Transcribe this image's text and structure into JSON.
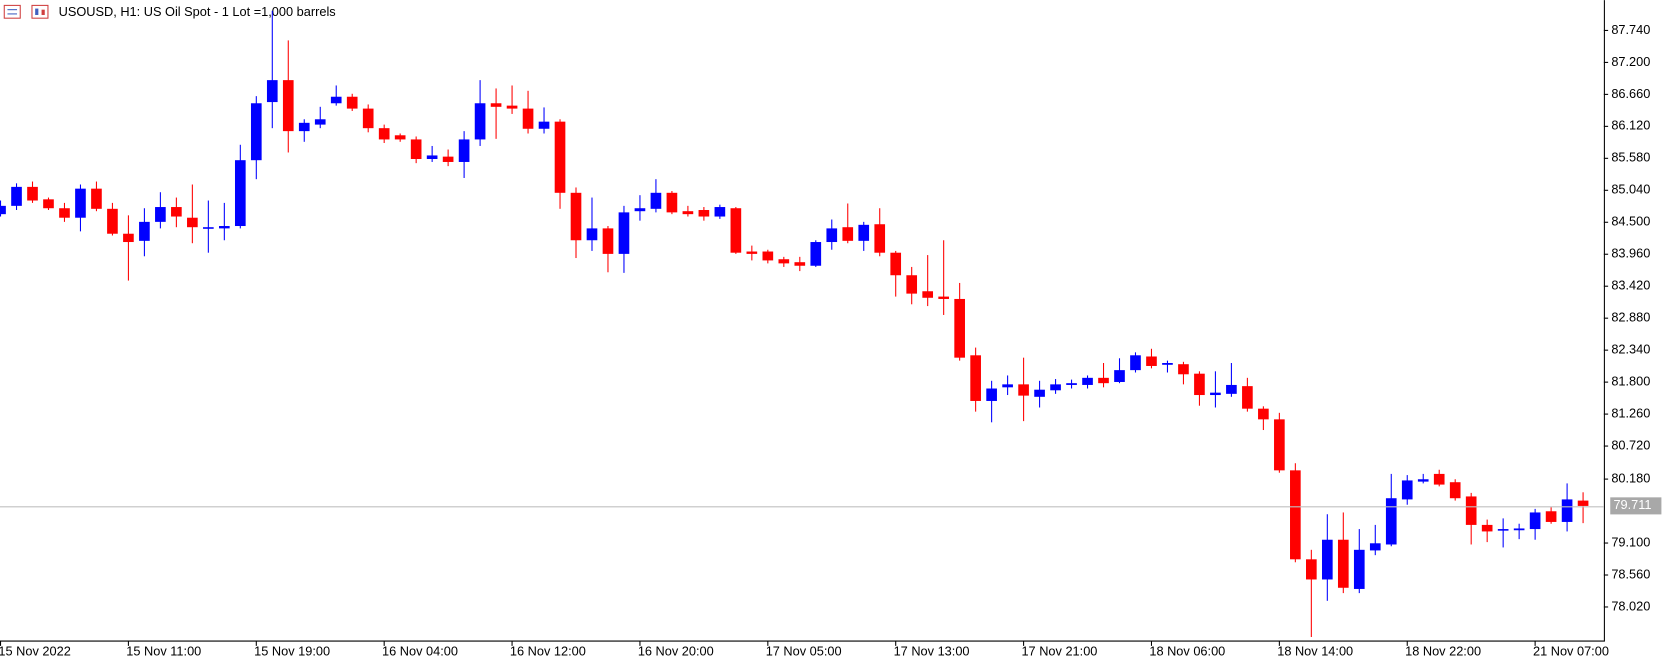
{
  "chart_data": {
    "type": "candlestick",
    "title": "USOUSD, H1:  US Oil Spot - 1 Lot =1,000 barrels",
    "categories": [
      "15 Nov 2022",
      null,
      null,
      null,
      null,
      null,
      null,
      null,
      "15 Nov 11:00",
      null,
      null,
      null,
      null,
      null,
      null,
      null,
      "15 Nov 19:00",
      null,
      null,
      null,
      null,
      null,
      null,
      null,
      "16 Nov 04:00",
      null,
      null,
      null,
      null,
      null,
      null,
      null,
      "16 Nov 12:00",
      null,
      null,
      null,
      null,
      null,
      null,
      null,
      "16 Nov 20:00",
      null,
      null,
      null,
      null,
      null,
      null,
      null,
      "17 Nov 05:00",
      null,
      null,
      null,
      null,
      null,
      null,
      null,
      "17 Nov 13:00",
      null,
      null,
      null,
      null,
      null,
      null,
      null,
      "17 Nov 21:00",
      null,
      null,
      null,
      null,
      null,
      null,
      null,
      "18 Nov 06:00",
      null,
      null,
      null,
      null,
      null,
      null,
      null,
      "18 Nov 14:00",
      null,
      null,
      null,
      null,
      null,
      null,
      null,
      "18 Nov 22:00",
      null,
      null,
      null,
      null,
      null,
      null,
      null,
      "21 Nov 07:00",
      null,
      null,
      null
    ],
    "open": [
      84.63,
      84.77,
      85.09,
      84.88,
      84.73,
      84.57,
      85.06,
      84.72,
      84.3,
      84.18,
      84.5,
      84.75,
      84.57,
      84.39,
      84.39,
      84.43,
      85.54,
      86.52,
      86.89,
      86.03,
      86.14,
      86.5,
      86.61,
      86.41,
      86.08,
      85.96,
      85.89,
      85.56,
      85.6,
      85.51,
      85.89,
      86.5,
      86.46,
      86.41,
      86.07,
      86.19,
      84.99,
      84.19,
      84.39,
      83.96,
      84.68,
      84.72,
      84.99,
      84.68,
      84.7,
      84.59,
      84.73,
      84.0,
      84.0,
      83.87,
      83.82,
      83.76,
      84.16,
      84.41,
      84.18,
      84.46,
      83.98,
      83.6,
      83.33,
      83.24,
      83.2,
      82.25,
      81.48,
      81.71,
      81.76,
      81.55,
      81.66,
      81.75,
      81.75,
      81.87,
      81.8,
      82.0,
      82.23,
      82.09,
      82.1,
      81.94,
      81.58,
      81.6,
      81.73,
      81.35,
      81.17,
      80.31,
      78.81,
      78.47,
      79.14,
      78.31,
      78.96,
      79.06,
      79.82,
      80.12,
      80.25,
      80.11,
      79.87,
      79.39,
      79.3,
      79.3,
      79.32,
      79.62,
      79.44,
      79.8
    ],
    "high": [
      84.86,
      85.15,
      85.18,
      84.91,
      84.82,
      85.13,
      85.18,
      84.82,
      84.61,
      84.73,
      85.0,
      84.91,
      85.13,
      84.86,
      84.82,
      85.8,
      86.62,
      88.06,
      87.56,
      86.23,
      86.44,
      86.8,
      86.66,
      86.48,
      86.14,
      85.99,
      85.94,
      85.78,
      85.72,
      86.03,
      86.89,
      86.75,
      86.8,
      86.71,
      86.43,
      86.23,
      85.08,
      84.91,
      84.43,
      84.77,
      84.95,
      85.22,
      85.02,
      84.77,
      84.75,
      84.79,
      84.75,
      84.1,
      84.03,
      83.91,
      83.91,
      84.19,
      84.54,
      84.81,
      84.5,
      84.73,
      84.01,
      83.74,
      83.94,
      84.19,
      83.47,
      82.38,
      81.82,
      81.91,
      82.21,
      81.82,
      81.85,
      81.84,
      81.91,
      82.12,
      82.2,
      82.3,
      82.36,
      82.16,
      82.14,
      81.98,
      81.98,
      82.12,
      81.87,
      81.39,
      81.28,
      80.43,
      78.97,
      79.57,
      79.6,
      79.32,
      79.39,
      80.25,
      80.23,
      80.25,
      80.32,
      80.16,
      79.93,
      79.48,
      79.5,
      79.41,
      79.66,
      79.69,
      80.09,
      79.94
    ],
    "low": [
      84.59,
      84.7,
      84.82,
      84.7,
      84.5,
      84.34,
      84.68,
      84.27,
      83.51,
      83.92,
      84.39,
      84.41,
      84.14,
      83.98,
      84.19,
      84.39,
      85.22,
      86.08,
      85.67,
      85.85,
      86.08,
      86.46,
      86.37,
      86.01,
      85.83,
      85.85,
      85.49,
      85.51,
      85.44,
      85.24,
      85.78,
      85.9,
      86.32,
      85.99,
      85.99,
      84.72,
      83.89,
      84.01,
      83.65,
      83.64,
      84.52,
      84.66,
      84.63,
      84.59,
      84.52,
      84.55,
      83.96,
      83.85,
      83.8,
      83.74,
      83.67,
      83.74,
      84.03,
      84.14,
      84.01,
      83.92,
      83.24,
      83.11,
      83.08,
      82.93,
      82.16,
      81.3,
      81.12,
      81.58,
      81.14,
      81.37,
      81.6,
      81.69,
      81.69,
      81.71,
      81.78,
      81.96,
      82.03,
      81.96,
      81.76,
      81.4,
      81.37,
      81.55,
      81.3,
      80.99,
      80.27,
      78.76,
      77.5,
      78.11,
      78.24,
      78.24,
      78.88,
      79.03,
      79.73,
      80.09,
      80.04,
      79.8,
      79.06,
      79.1,
      79.01,
      79.15,
      79.14,
      79.41,
      79.28,
      79.42
    ],
    "close": [
      84.77,
      85.09,
      84.86,
      84.73,
      84.57,
      85.06,
      84.72,
      84.3,
      84.16,
      84.5,
      84.75,
      84.59,
      84.41,
      84.41,
      84.43,
      85.54,
      86.5,
      86.89,
      86.03,
      86.17,
      86.23,
      86.61,
      86.41,
      86.08,
      85.89,
      85.89,
      85.56,
      85.62,
      85.51,
      85.89,
      86.5,
      86.44,
      86.41,
      86.07,
      86.19,
      84.99,
      84.19,
      84.39,
      83.96,
      84.66,
      84.73,
      84.99,
      84.66,
      84.63,
      84.59,
      84.75,
      83.98,
      83.96,
      83.85,
      83.8,
      83.76,
      84.16,
      84.39,
      84.18,
      84.45,
      83.98,
      83.6,
      83.29,
      83.22,
      83.2,
      82.21,
      81.48,
      81.69,
      81.76,
      81.57,
      81.67,
      81.76,
      81.78,
      81.87,
      81.78,
      82.0,
      82.25,
      82.07,
      82.12,
      81.93,
      81.58,
      81.62,
      81.75,
      81.35,
      81.17,
      80.31,
      78.81,
      78.47,
      79.14,
      78.33,
      78.97,
      79.08,
      79.84,
      80.14,
      80.16,
      80.07,
      79.84,
      79.39,
      79.28,
      79.32,
      79.33,
      79.6,
      79.44,
      79.82,
      79.71
    ],
    "up_color": "#0000ff",
    "down_color": "#ff0000",
    "current_price": 79.711,
    "ylim": [
      77.44,
      88.24
    ],
    "yticks": [
      {
        "value": 87.74,
        "label": "87.740"
      },
      {
        "value": 87.2,
        "label": "87.200"
      },
      {
        "value": 86.66,
        "label": "86.660"
      },
      {
        "value": 86.12,
        "label": "86.120"
      },
      {
        "value": 85.58,
        "label": "85.580"
      },
      {
        "value": 85.04,
        "label": "85.040"
      },
      {
        "value": 84.5,
        "label": "84.500"
      },
      {
        "value": 83.96,
        "label": "83.960"
      },
      {
        "value": 83.42,
        "label": "83.420"
      },
      {
        "value": 82.88,
        "label": "82.880"
      },
      {
        "value": 82.34,
        "label": "82.340"
      },
      {
        "value": 81.8,
        "label": "81.800"
      },
      {
        "value": 81.26,
        "label": "81.260"
      },
      {
        "value": 80.72,
        "label": "80.720"
      },
      {
        "value": 80.18,
        "label": "80.180"
      },
      {
        "value": 79.1,
        "label": "79.100"
      },
      {
        "value": 78.56,
        "label": "78.560"
      },
      {
        "value": 78.02,
        "label": "78.020"
      }
    ]
  }
}
